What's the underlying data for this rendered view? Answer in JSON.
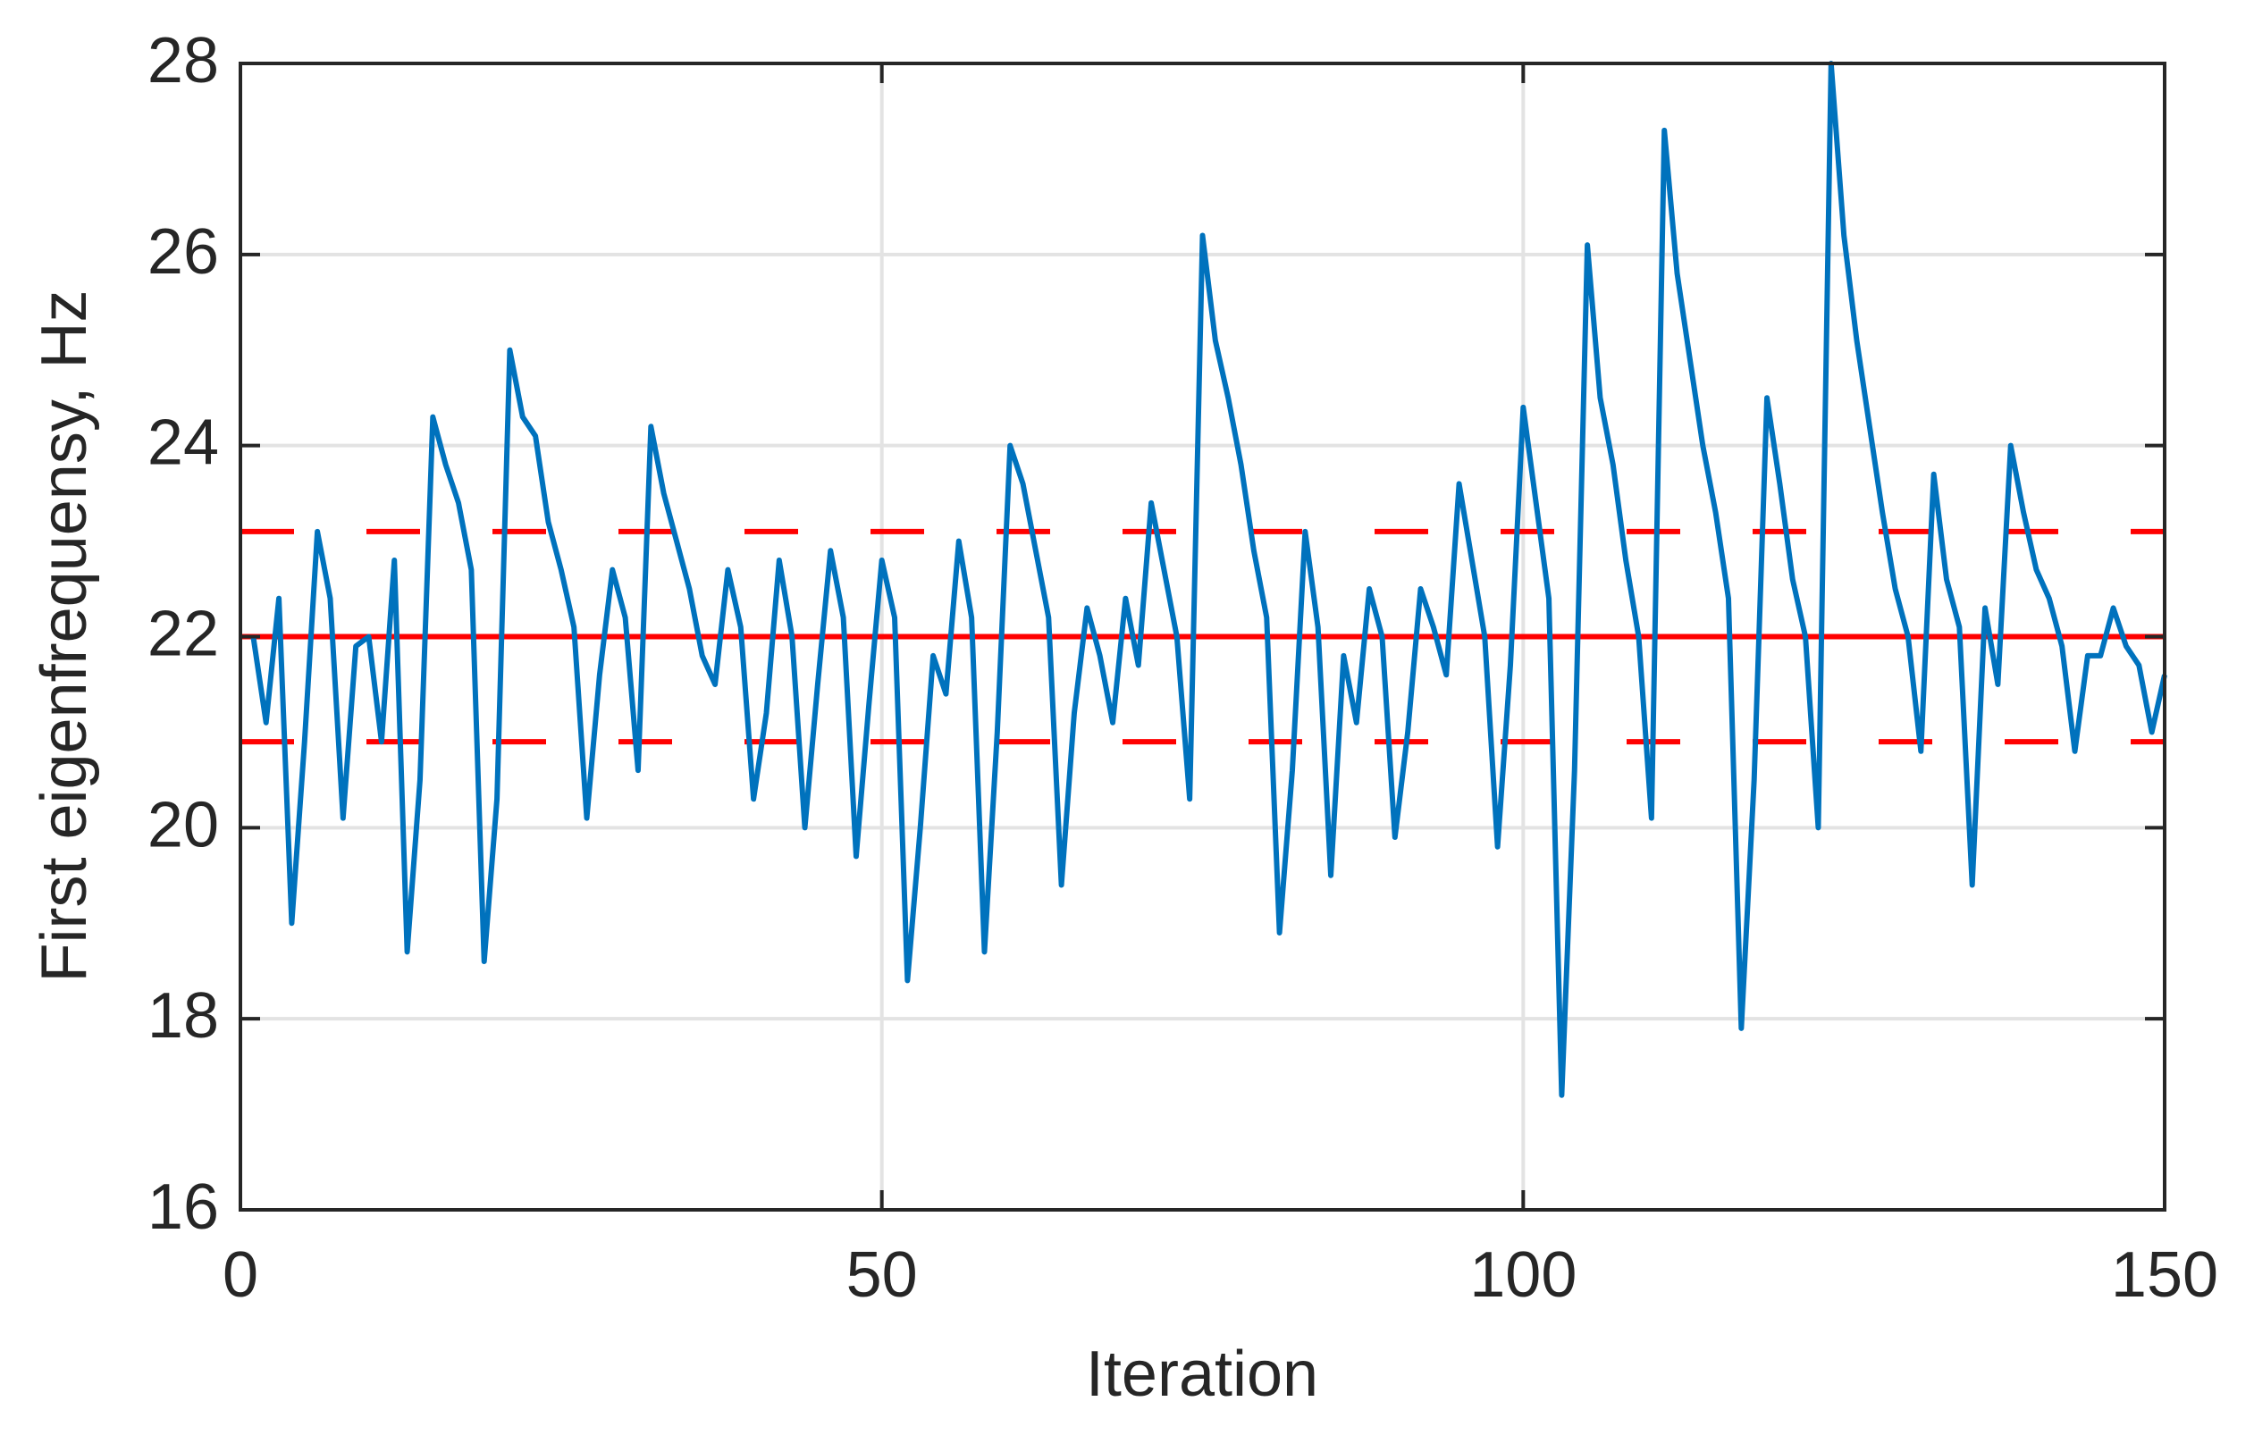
{
  "chart_data": {
    "type": "line",
    "xlabel": "Iteration",
    "ylabel": "First eigenfrequensy, Hz",
    "x": [
      1,
      2,
      3,
      4,
      5,
      6,
      7,
      8,
      9,
      10,
      11,
      12,
      13,
      14,
      15,
      16,
      17,
      18,
      19,
      20,
      21,
      22,
      23,
      24,
      25,
      26,
      27,
      28,
      29,
      30,
      31,
      32,
      33,
      34,
      35,
      36,
      37,
      38,
      39,
      40,
      41,
      42,
      43,
      44,
      45,
      46,
      47,
      48,
      49,
      50,
      51,
      52,
      53,
      54,
      55,
      56,
      57,
      58,
      59,
      60,
      61,
      62,
      63,
      64,
      65,
      66,
      67,
      68,
      69,
      70,
      71,
      72,
      73,
      74,
      75,
      76,
      77,
      78,
      79,
      80,
      81,
      82,
      83,
      84,
      85,
      86,
      87,
      88,
      89,
      90,
      91,
      92,
      93,
      94,
      95,
      96,
      97,
      98,
      99,
      100,
      101,
      102,
      103,
      104,
      105,
      106,
      107,
      108,
      109,
      110,
      111,
      112,
      113,
      114,
      115,
      116,
      117,
      118,
      119,
      120,
      121,
      122,
      123,
      124,
      125,
      126,
      127,
      128,
      129,
      130,
      131,
      132,
      133,
      134,
      135,
      136,
      137,
      138,
      139,
      140,
      141,
      142,
      143,
      144,
      145,
      146,
      147,
      148,
      149,
      150
    ],
    "series": [
      {
        "color": "#0072bd",
        "values": [
          22.0,
          21.1,
          22.4,
          19.0,
          20.9,
          23.1,
          22.4,
          20.1,
          21.9,
          22.0,
          20.9,
          22.8,
          18.7,
          20.5,
          24.3,
          23.8,
          23.4,
          22.7,
          18.6,
          20.3,
          25.0,
          24.3,
          24.1,
          23.2,
          22.7,
          22.1,
          20.1,
          21.6,
          22.7,
          22.2,
          20.6,
          24.2,
          23.5,
          23.0,
          22.5,
          21.8,
          21.5,
          22.7,
          22.1,
          20.3,
          21.2,
          22.8,
          22.0,
          20.0,
          21.5,
          22.9,
          22.2,
          19.7,
          21.3,
          22.8,
          22.2,
          18.4,
          20.0,
          21.8,
          21.4,
          23.0,
          22.2,
          18.7,
          21.0,
          24.0,
          23.6,
          22.9,
          22.2,
          19.4,
          21.2,
          22.3,
          21.8,
          21.1,
          22.4,
          21.7,
          23.4,
          22.7,
          22.0,
          20.3,
          26.2,
          25.1,
          24.5,
          23.8,
          22.9,
          22.2,
          18.9,
          20.6,
          23.1,
          22.1,
          19.5,
          21.8,
          21.1,
          22.5,
          22.0,
          19.9,
          21.0,
          22.5,
          22.1,
          21.6,
          23.6,
          22.8,
          22.0,
          19.8,
          21.7,
          24.4,
          23.4,
          22.4,
          17.2,
          20.6,
          26.1,
          24.5,
          23.8,
          22.8,
          22.0,
          20.1,
          27.3,
          25.8,
          24.9,
          24.0,
          23.3,
          22.4,
          17.9,
          20.5,
          24.5,
          23.6,
          22.6,
          22.0,
          20.0,
          28.0,
          26.2,
          25.1,
          24.2,
          23.3,
          22.5,
          22.0,
          20.8,
          23.7,
          22.6,
          22.1,
          19.4,
          22.3,
          21.5,
          24.0,
          23.3,
          22.7,
          22.4,
          21.9,
          20.8,
          21.8,
          21.8,
          22.3,
          21.9,
          21.7,
          21.0,
          21.6
        ]
      }
    ],
    "reference_lines": [
      {
        "value": 22,
        "style": "solid",
        "color": "#ff0000"
      },
      {
        "value": 23.1,
        "style": "dashed",
        "color": "#ff0000"
      },
      {
        "value": 20.9,
        "style": "dashed",
        "color": "#ff0000"
      }
    ],
    "xlim": [
      0,
      150
    ],
    "xticks": [
      0,
      50,
      100,
      150
    ],
    "ylim": [
      16,
      28
    ],
    "yticks": [
      16,
      18,
      20,
      22,
      24,
      26,
      28
    ],
    "grid": true
  }
}
